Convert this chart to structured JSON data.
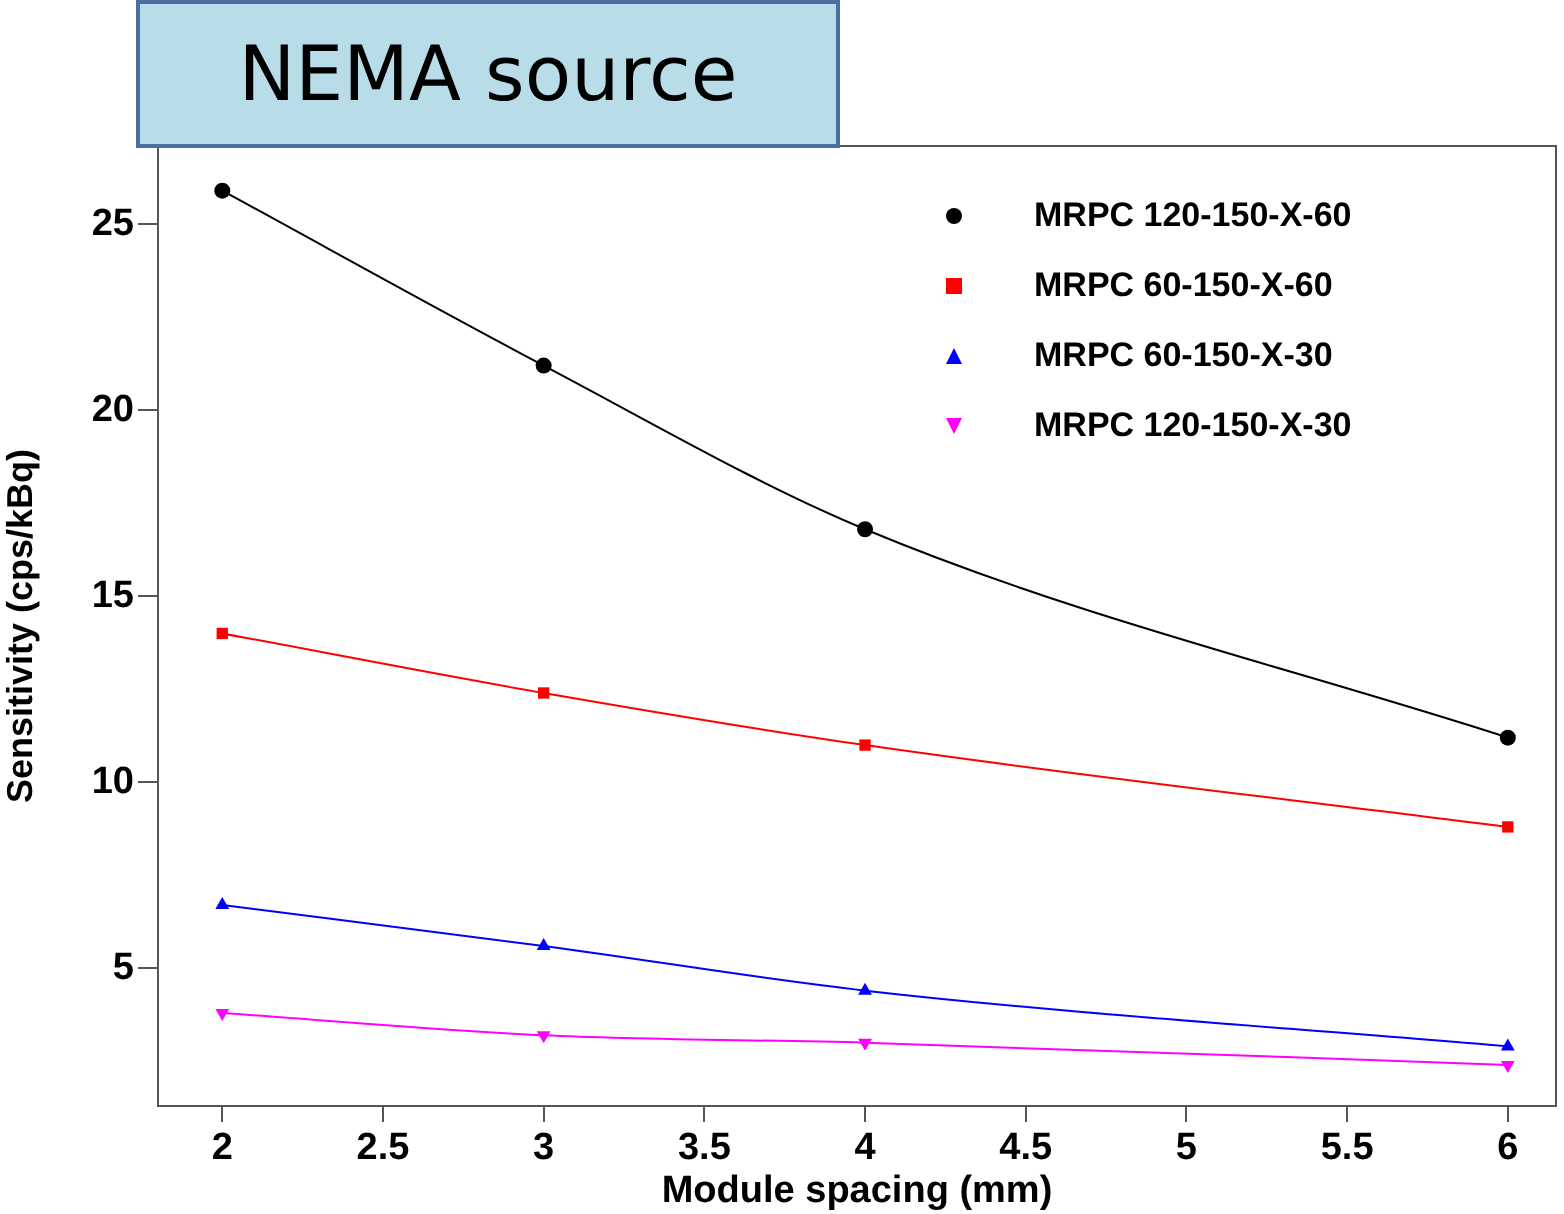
{
  "chart_data": {
    "type": "line",
    "title": "NEMA source",
    "xlabel": "Module spacing (mm)",
    "ylabel": "Sensitivity (cps/kBq)",
    "x": [
      2,
      3,
      4,
      6
    ],
    "series": [
      {
        "name": "MRPC 120-150-X-60",
        "color": "#000000",
        "marker": "circle",
        "values": [
          25.9,
          21.2,
          16.8,
          11.2
        ]
      },
      {
        "name": "MRPC 60-150-X-60",
        "color": "#ff0000",
        "marker": "square",
        "values": [
          14.0,
          12.4,
          11.0,
          8.8
        ]
      },
      {
        "name": "MRPC 60-150-X-30",
        "color": "#0000ff",
        "marker": "triangle",
        "values": [
          6.7,
          5.6,
          4.4,
          2.9
        ]
      },
      {
        "name": "MRPC 120-150-X-30",
        "color": "#ff00ff",
        "marker": "triangle-down",
        "values": [
          3.8,
          3.2,
          3.0,
          2.4
        ]
      }
    ],
    "xlim": [
      1.8,
      6.15
    ],
    "xticks": [
      2,
      2.5,
      3,
      3.5,
      4,
      4.5,
      5,
      5.5,
      6
    ],
    "ylim": [
      1.3,
      27.1
    ],
    "yticks": [
      5,
      10,
      15,
      20,
      25
    ],
    "grid": false,
    "legend": "top right",
    "line_style": "solid"
  }
}
